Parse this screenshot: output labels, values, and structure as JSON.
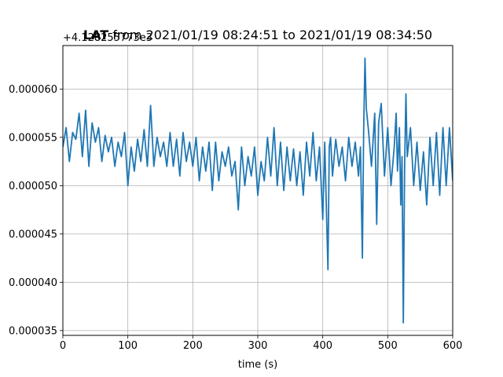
{
  "chart_data": {
    "type": "line",
    "title_bold": "LAT",
    "title_rest": " from 2021/01/19 08:24:51 to 2021/01/19 08:34:50",
    "xlabel": "time (s)",
    "ylabel": "",
    "y_offset_label": "+4.128255773e3",
    "xlim": [
      0,
      600
    ],
    "ylim": [
      3.45e-05,
      6.45e-05
    ],
    "x_ticks": [
      "0",
      "100",
      "200",
      "300",
      "400",
      "500",
      "600"
    ],
    "y_ticks": [
      "0.000035",
      "0.000040",
      "0.000045",
      "0.000050",
      "0.000055",
      "0.000060"
    ],
    "grid": true,
    "line_color": "#1f77b4",
    "series": [
      {
        "x": [
          0,
          5,
          10,
          15,
          20,
          25,
          30,
          35,
          40,
          45,
          50,
          55,
          60,
          65,
          70,
          75,
          80,
          85,
          90,
          95,
          100,
          105,
          110,
          115,
          120,
          125,
          130,
          135,
          140,
          145,
          150,
          155,
          160,
          165,
          170,
          175,
          180,
          185,
          190,
          195,
          200,
          205,
          210,
          215,
          220,
          225,
          230,
          235,
          240,
          245,
          250,
          255,
          260,
          265,
          270,
          275,
          280,
          285,
          290,
          295,
          300,
          305,
          310,
          315,
          320,
          325,
          330,
          335,
          340,
          345,
          350,
          355,
          360,
          365,
          370,
          375,
          380,
          385,
          390,
          395,
          400,
          403,
          406,
          408,
          410,
          412,
          415,
          420,
          425,
          430,
          435,
          440,
          445,
          450,
          455,
          458,
          461,
          463,
          465,
          467,
          470,
          475,
          480,
          483,
          486,
          490,
          495,
          500,
          505,
          510,
          513,
          515,
          518,
          520,
          522,
          524,
          526,
          528,
          530,
          535,
          540,
          545,
          550,
          555,
          560,
          565,
          570,
          575,
          580,
          585,
          590,
          595,
          600
        ],
        "values": [
          5.4e-05,
          5.6e-05,
          5.25e-05,
          5.55e-05,
          5.48e-05,
          5.75e-05,
          5.3e-05,
          5.78e-05,
          5.2e-05,
          5.65e-05,
          5.45e-05,
          5.6e-05,
          5.25e-05,
          5.52e-05,
          5.35e-05,
          5.5e-05,
          5.2e-05,
          5.45e-05,
          5.3e-05,
          5.55e-05,
          5e-05,
          5.4e-05,
          5.15e-05,
          5.48e-05,
          5.25e-05,
          5.58e-05,
          5.2e-05,
          5.83e-05,
          5.2e-05,
          5.5e-05,
          5.3e-05,
          5.45e-05,
          5.2e-05,
          5.55e-05,
          5.2e-05,
          5.48e-05,
          5.1e-05,
          5.55e-05,
          5.25e-05,
          5.45e-05,
          5.2e-05,
          5.5e-05,
          5.05e-05,
          5.4e-05,
          5.15e-05,
          5.45e-05,
          4.95e-05,
          5.45e-05,
          5.05e-05,
          5.35e-05,
          5.2e-05,
          5.4e-05,
          5.1e-05,
          5.25e-05,
          4.75e-05,
          5.4e-05,
          5e-05,
          5.3e-05,
          5.1e-05,
          5.4e-05,
          4.9e-05,
          5.25e-05,
          5.05e-05,
          5.5e-05,
          5.1e-05,
          5.6e-05,
          5e-05,
          5.45e-05,
          4.95e-05,
          5.4e-05,
          5.05e-05,
          5.38e-05,
          5e-05,
          5.35e-05,
          4.9e-05,
          5.45e-05,
          5.1e-05,
          5.55e-05,
          5.05e-05,
          5.4e-05,
          4.65e-05,
          5.45e-05,
          4.65e-05,
          4.13e-05,
          5.4e-05,
          5.5e-05,
          5.1e-05,
          5.48e-05,
          5.2e-05,
          5.4e-05,
          5.05e-05,
          5.5e-05,
          5.2e-05,
          5.45e-05,
          5.1e-05,
          5.4e-05,
          4.25e-05,
          5.6e-05,
          6.32e-05,
          5.8e-05,
          5.6e-05,
          5.2e-05,
          5.75e-05,
          4.6e-05,
          5.65e-05,
          5.85e-05,
          5.1e-05,
          5.6e-05,
          5e-05,
          5.4e-05,
          5.75e-05,
          5.15e-05,
          5.6e-05,
          4.8e-05,
          5.3e-05,
          3.58e-05,
          5.2e-05,
          5.95e-05,
          5.3e-05,
          5.6e-05,
          5e-05,
          5.45e-05,
          4.95e-05,
          5.35e-05,
          4.8e-05,
          5.5e-05,
          5e-05,
          5.55e-05,
          4.9e-05,
          5.6e-05,
          5e-05,
          5.6e-05,
          5.05e-05
        ]
      }
    ]
  }
}
